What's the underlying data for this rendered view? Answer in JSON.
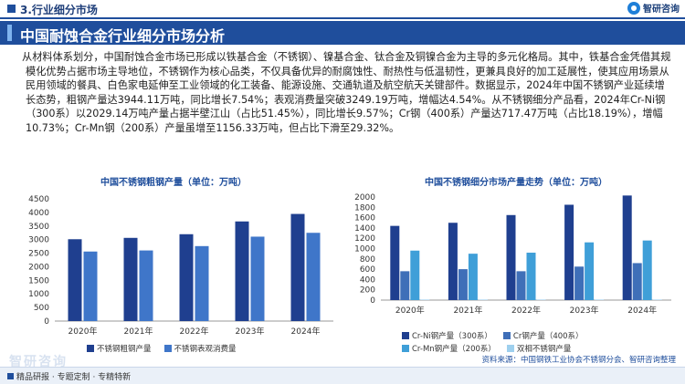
{
  "header": {
    "section": "3.行业细分市场",
    "logo_text": "智研咨询",
    "title": "中国耐蚀合金行业细分市场分析"
  },
  "body_text": "从材料体系划分，中国耐蚀合金市场已形成以铁基合金（不锈钢）、镍基合金、钛合金及铜镍合金为主导的多元化格局。其中，铁基合金凭借其规模化优势占据市场主导地位，不锈钢作为核心品类，不仅具备优异的耐腐蚀性、耐热性与低温韧性，更兼具良好的加工延展性，使其应用场景从民用领域的餐具、白色家电延伸至工业领域的化工装备、能源设施、交通轨道及航空航天关键部件。数据显示，2024年中国不锈钢产业延续增长态势，粗钢产量达3944.11万吨，同比增长7.54%；表观消费量突破3249.19万吨，增幅达4.54%。从不锈钢细分产品看，2024年Cr-Ni钢（300系）以2029.14万吨产量占据半壁江山（占比51.45%），同比增长9.57%；Cr钢（400系）产量达717.47万吨（占比18.19%），增幅10.73%；Cr-Mn钢（200系）产量虽增至1156.33万吨，但占比下滑至29.32%。",
  "chart_data": [
    {
      "type": "bar",
      "title": "中国不锈钢粗钢产量（单位：万吨）",
      "categories": [
        "2020年",
        "2021年",
        "2022年",
        "2023年",
        "2024年"
      ],
      "ylim": [
        0,
        4500
      ],
      "yticks": [
        "0",
        "500",
        "1000",
        "1500",
        "2000",
        "2500",
        "3000",
        "3500",
        "4000",
        "4500"
      ],
      "series": [
        {
          "name": "不锈钢粗钢产量",
          "color": "#1f3f8f",
          "values": [
            3013,
            3063,
            3198,
            3668,
            3944.11
          ]
        },
        {
          "name": "不锈钢表观消费量",
          "color": "#3f76c9",
          "values": [
            2560,
            2600,
            2760,
            3108,
            3249.19
          ]
        }
      ]
    },
    {
      "type": "bar",
      "title": "中国不锈钢细分市场产量走势（单位：万吨）",
      "categories": [
        "2020年",
        "2021年",
        "2022年",
        "2023年",
        "2024年"
      ],
      "ylim": [
        0,
        2000
      ],
      "yticks": [
        "0",
        "200",
        "400",
        "600",
        "800",
        "1000",
        "1200",
        "1400",
        "1600",
        "1800",
        "2000"
      ],
      "series": [
        {
          "name": "Cr-Ni钢产量（300系）",
          "color": "#1f3f8f",
          "values": [
            1440,
            1500,
            1650,
            1850,
            2029.14
          ]
        },
        {
          "name": "Cr钢产量（400系）",
          "color": "#3f6fb8",
          "values": [
            560,
            600,
            560,
            650,
            717.47
          ]
        },
        {
          "name": "Cr-Mn钢产量（200系）",
          "color": "#3f9fd8",
          "values": [
            960,
            900,
            920,
            1120,
            1156.33
          ]
        },
        {
          "name": "双相不锈钢产量",
          "color": "#9ed0ee",
          "values": [
            10,
            10,
            10,
            10,
            10
          ]
        }
      ]
    }
  ],
  "source": "资料来源：中国钢铁工业协会不锈钢分会、智研咨询整理",
  "watermark": "智研咨询",
  "footer": "精品研报 · 专题定制 · 专精特新"
}
